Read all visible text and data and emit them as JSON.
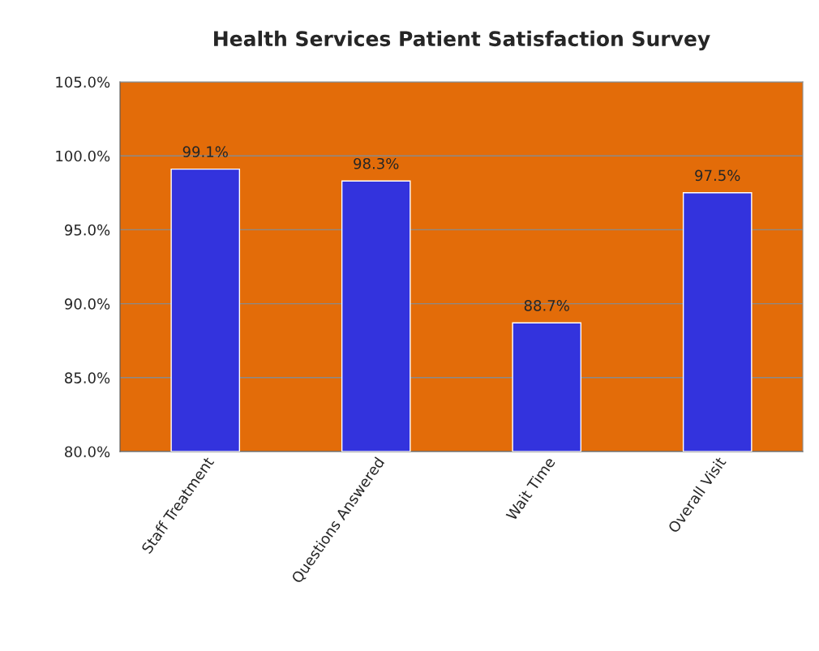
{
  "chart_data": {
    "type": "bar",
    "title": "Health Services Patient Satisfaction Survey",
    "categories": [
      "Staff Treatment",
      "Questions Answered",
      "Wait Time",
      "Overall Visit"
    ],
    "values": [
      99.1,
      98.3,
      88.7,
      97.5
    ],
    "value_labels": [
      "99.1%",
      "98.3%",
      "88.7%",
      "97.5%"
    ],
    "color": "#3333dd",
    "ylim": [
      80,
      105
    ],
    "yticks": [
      {
        "value": 80,
        "label": "80.0%"
      },
      {
        "value": 85,
        "label": "85.0%"
      },
      {
        "value": 90,
        "label": "90.0%"
      },
      {
        "value": 95,
        "label": "95.0%"
      },
      {
        "value": 100,
        "label": "100.0%"
      },
      {
        "value": 105,
        "label": "105.0%"
      }
    ],
    "grid": "y",
    "legend": false
  }
}
